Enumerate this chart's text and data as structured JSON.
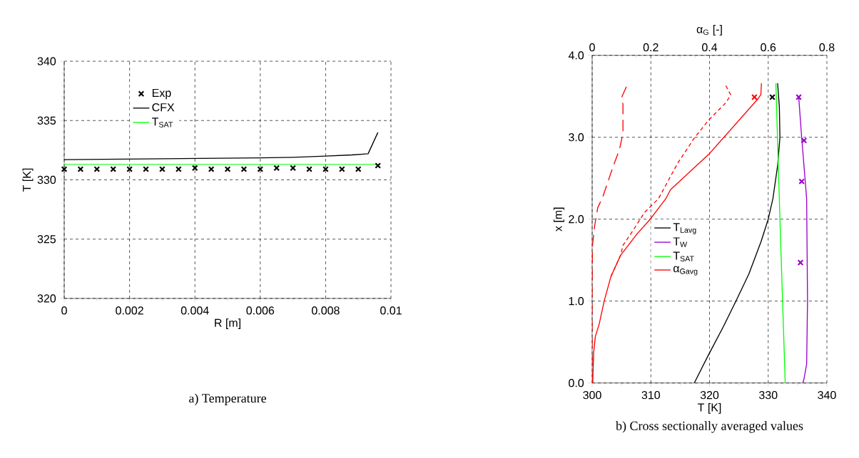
{
  "chart_data": [
    {
      "type": "line",
      "title": "a) Temperature",
      "xlabel": "R [m]",
      "ylabel": "T [K]",
      "xlim": [
        0,
        0.01
      ],
      "ylim": [
        320,
        340
      ],
      "xticks": [
        0,
        0.002,
        0.004,
        0.006,
        0.008,
        0.01
      ],
      "yticks": [
        320,
        325,
        330,
        335,
        340
      ],
      "grid": true,
      "legend": "top left",
      "series": [
        {
          "name": "Exp",
          "type": "scatter",
          "marker": "cross",
          "color": "#000000",
          "x": [
            0,
            0.0005,
            0.001,
            0.0015,
            0.002,
            0.0025,
            0.003,
            0.0035,
            0.004,
            0.0045,
            0.005,
            0.0055,
            0.006,
            0.0065,
            0.007,
            0.0075,
            0.008,
            0.0085,
            0.009,
            0.0096
          ],
          "values": [
            330.9,
            330.9,
            330.9,
            330.9,
            330.9,
            330.9,
            330.9,
            330.9,
            331.0,
            330.9,
            330.9,
            330.9,
            330.9,
            331.0,
            331.0,
            330.9,
            330.9,
            330.9,
            330.9,
            331.2
          ]
        },
        {
          "name": "CFX",
          "color": "#000000",
          "x": [
            0,
            0.002,
            0.004,
            0.006,
            0.007,
            0.008,
            0.0088,
            0.0093,
            0.0096
          ],
          "values": [
            331.7,
            331.75,
            331.8,
            331.85,
            331.9,
            332.0,
            332.1,
            332.2,
            334.0
          ]
        },
        {
          "name": "T$_{SAT}$",
          "color": "#00ff00",
          "x": [
            0,
            0.0096
          ],
          "values": [
            331.3,
            331.3
          ]
        }
      ]
    },
    {
      "type": "line",
      "title": "b) Cross sectionally averaged values",
      "xlabel": "T [K]",
      "ylabel": "x [m]",
      "x2label": "α$_{G}$ [-]",
      "xlim": [
        300,
        340
      ],
      "ylim": [
        0,
        4
      ],
      "x2lim": [
        0,
        0.8
      ],
      "xticks": [
        300,
        310,
        320,
        330,
        340
      ],
      "x2ticks": [
        0,
        0.2,
        0.4,
        0.6,
        0.8
      ],
      "yticks": [
        {
          "value": 0,
          "label": "0.0"
        },
        {
          "value": 1,
          "label": "1.0"
        },
        {
          "value": 2,
          "label": "2.0"
        },
        {
          "value": 3,
          "label": "3.0"
        },
        {
          "value": 4,
          "label": "4.0"
        }
      ],
      "grid": true,
      "legend": "left",
      "series": [
        {
          "name": "T$_{Lavg}$",
          "color": "#000000",
          "x": [
            317.4,
            319.8,
            322.3,
            324.5,
            326.7,
            328.8,
            330.0,
            330.8,
            331.6,
            332.0,
            331.9,
            331.6
          ],
          "values": [
            0,
            0.34,
            0.68,
            1.0,
            1.33,
            1.73,
            2.0,
            2.25,
            2.65,
            3.0,
            3.37,
            3.66
          ]
        },
        {
          "name": "T$_{W}$",
          "color": "#9900cc",
          "x": [
            335.9,
            336.1,
            336.55,
            336.7,
            336.55,
            335.7,
            335.2
          ],
          "values": [
            0,
            0.05,
            0.23,
            1.0,
            2.25,
            3.0,
            3.49
          ]
        },
        {
          "name": "T$_{SAT}$",
          "color": "#00ff00",
          "x": [
            332.9,
            332.0,
            331.3
          ],
          "values": [
            0,
            2.0,
            3.66
          ]
        },
        {
          "name": "α$_{Gavg}$",
          "color": "#ff0000",
          "axis": "x2",
          "x": [
            0.002,
            0.005,
            0.011,
            0.024,
            0.041,
            0.064,
            0.097,
            0.153,
            0.198,
            0.251,
            0.267,
            0.397,
            0.449,
            0.563,
            0.575,
            0.577
          ],
          "values": [
            0,
            0.37,
            0.57,
            0.72,
            1.0,
            1.3,
            1.56,
            1.82,
            2.0,
            2.25,
            2.36,
            2.79,
            3.0,
            3.46,
            3.52,
            3.66
          ]
        },
        {
          "color": "#ff0000",
          "axis": "x2",
          "line_style": "dashed",
          "x": [
            0.064,
            0.097,
            0.105,
            0.137,
            0.178,
            0.226,
            0.291,
            0.348,
            0.397,
            0.458,
            0.472,
            0.454
          ],
          "values": [
            1.3,
            1.56,
            1.68,
            1.85,
            2.08,
            2.25,
            2.68,
            2.99,
            3.21,
            3.43,
            3.52,
            3.64
          ]
        },
        {
          "color": "#ff0000",
          "axis": "x2",
          "line_style": "long dashed",
          "x": [
            0,
            0,
            0.001,
            0.009,
            0.019,
            0.036,
            0.072,
            0.093,
            0.105,
            0.105,
            0.101,
            0.117
          ],
          "values": [
            0,
            1.09,
            1.68,
            1.93,
            2.14,
            2.27,
            2.65,
            2.85,
            3.05,
            3.4,
            3.49,
            3.62
          ]
        },
        {
          "type": "scatter",
          "marker": "cross",
          "color": "#000000",
          "x": [
            330.7
          ],
          "values": [
            3.49
          ]
        },
        {
          "type": "scatter",
          "marker": "cross",
          "color": "#9900cc",
          "x": [
            335.2,
            336.1,
            335.7,
            335.5
          ],
          "values": [
            3.49,
            2.96,
            2.46,
            1.47
          ]
        },
        {
          "type": "scatter",
          "marker": "cross",
          "color": "#ff0000",
          "axis": "x2",
          "x": [
            0.553
          ],
          "values": [
            3.49
          ]
        }
      ]
    }
  ]
}
